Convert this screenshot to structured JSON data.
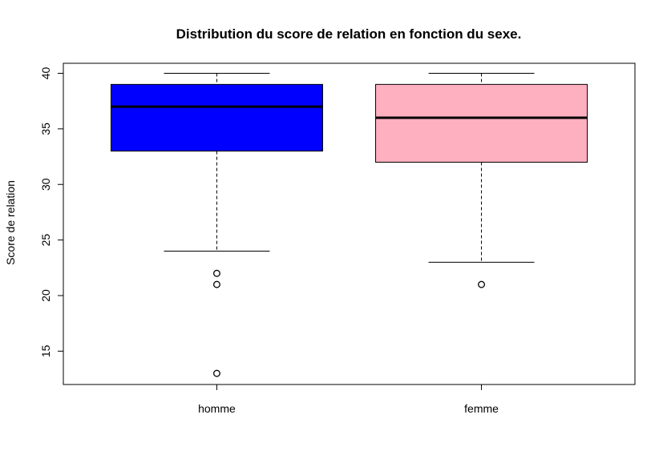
{
  "chart_data": {
    "type": "boxplot",
    "title": "Distribution du score de relation en fonction du sexe.",
    "xlabel": "",
    "ylabel": "Score de relation",
    "ylim": [
      12,
      40.9
    ],
    "yticks": [
      15,
      20,
      25,
      30,
      35,
      40
    ],
    "grid": false,
    "categories": [
      "homme",
      "femme"
    ],
    "boxes": [
      {
        "category": "homme",
        "color": "#0000ff",
        "whisker_low": 24,
        "q1": 33,
        "median": 37,
        "q3": 39,
        "whisker_high": 40,
        "outliers": [
          22,
          21,
          13
        ]
      },
      {
        "category": "femme",
        "color": "#ffb0c0",
        "whisker_low": 23,
        "q1": 32,
        "median": 36,
        "q3": 39,
        "whisker_high": 40,
        "outliers": [
          21
        ]
      }
    ]
  }
}
